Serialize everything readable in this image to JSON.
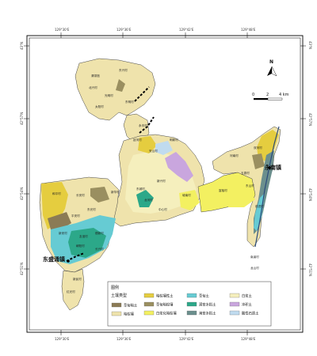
{
  "map": {
    "north_label": "N",
    "scale": {
      "labels": [
        "0",
        "2",
        "4 km"
      ]
    },
    "top_ticks": [
      "129°30'E",
      "129°36'E",
      "129°42'E",
      "129°48'E"
    ],
    "bottom_ticks": [
      "129°30'E",
      "129°36'E",
      "129°42'E",
      "129°48'E"
    ],
    "left_ticks": [
      "43°N",
      "42°57'N",
      "42°54'N",
      "42°51'N"
    ],
    "right_ticks": [
      "43°N",
      "42°57'N",
      "42°54'N",
      "42°51'N"
    ],
    "towns": {
      "dongsheng": "东盛涌镇",
      "yongnan": "永南镇"
    },
    "villages": [
      "清茶馆",
      "东兴村",
      "北兴村",
      "光明村",
      "太阳村",
      "东明村",
      "永丰村",
      "延河村",
      "安山村",
      "明新村",
      "新兴村",
      "东城村",
      "龙河村",
      "中心村",
      "城南村",
      "河南村",
      "双河村",
      "玉泉村",
      "东山村",
      "富裕村",
      "前进村",
      "南溪村",
      "龙山村",
      "和平村",
      "长安村",
      "东光村",
      "平安村",
      "新安村",
      "友谊村",
      "德新村",
      "朝阳村",
      "长兴村",
      "新民村",
      "红光村",
      "新华村"
    ]
  },
  "legend": {
    "title": "图例",
    "subtitle": "土壤类型",
    "items": [
      {
        "label": "草甸暗土",
        "color": "#8b7b55"
      },
      {
        "label": "暗棕壤",
        "color": "#efe3ac"
      },
      {
        "label": "暗棕壤性土",
        "color": "#e5cd3f"
      },
      {
        "label": "草甸暗棕壤",
        "color": "#9a8f60"
      },
      {
        "label": "白浆化暗棕壤",
        "color": "#f3f061"
      },
      {
        "label": "草甸土",
        "color": "#66cbd3"
      },
      {
        "label": "潜育水稻土",
        "color": "#2ca889"
      },
      {
        "label": "淹育水稻土",
        "color": "#6b8f8d"
      },
      {
        "label": "白浆土",
        "color": "#f5efbd"
      },
      {
        "label": "冲积土",
        "color": "#c9a6de"
      },
      {
        "label": "酸性石质土",
        "color": "#c0dbef"
      }
    ]
  }
}
